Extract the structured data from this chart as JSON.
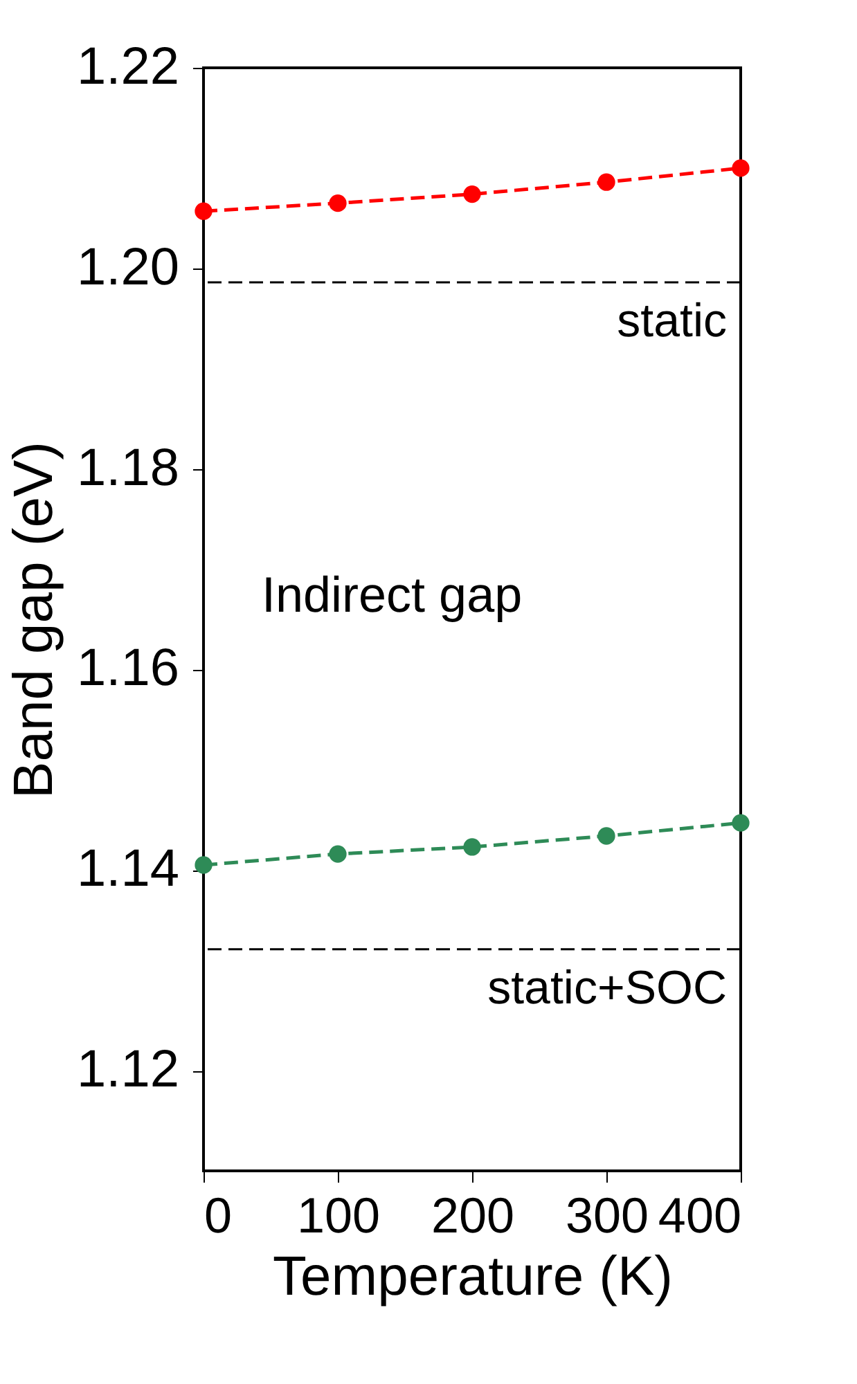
{
  "chart_data": {
    "type": "line",
    "xlabel": "Temperature (K)",
    "ylabel": "Band gap (eV)",
    "x": [
      0,
      100,
      200,
      300,
      400
    ],
    "series": [
      {
        "color": "#ff0000",
        "values": [
          1.2057,
          1.2065,
          1.2074,
          1.2086,
          1.21
        ]
      },
      {
        "color": "#2e8b57",
        "values": [
          1.1405,
          1.1416,
          1.1423,
          1.1434,
          1.1447
        ]
      }
    ],
    "xlim": [
      0,
      400
    ],
    "xticks": [
      0,
      100,
      200,
      300,
      400
    ],
    "ylim": [
      1.11,
      1.22
    ],
    "yticks": [
      {
        "value": 1.12,
        "label": "1.12"
      },
      {
        "value": 1.14,
        "label": "1.14"
      },
      {
        "value": 1.16,
        "label": "1.16"
      },
      {
        "value": 1.18,
        "label": "1.18"
      },
      {
        "value": 1.2,
        "label": "1.20"
      },
      {
        "value": 1.22,
        "label": "1.22"
      }
    ],
    "ref_lines": [
      {
        "axis": "y",
        "value": 1.1986,
        "label": "static",
        "color": "#000000",
        "line_style": "dashed"
      },
      {
        "axis": "y",
        "value": 1.1321,
        "label": "static+SOC",
        "color": "#000000",
        "line_style": "dashed"
      }
    ],
    "annotations": [
      "Indirect gap"
    ],
    "marker": "circle",
    "line_style": "dashed",
    "grid": false
  }
}
